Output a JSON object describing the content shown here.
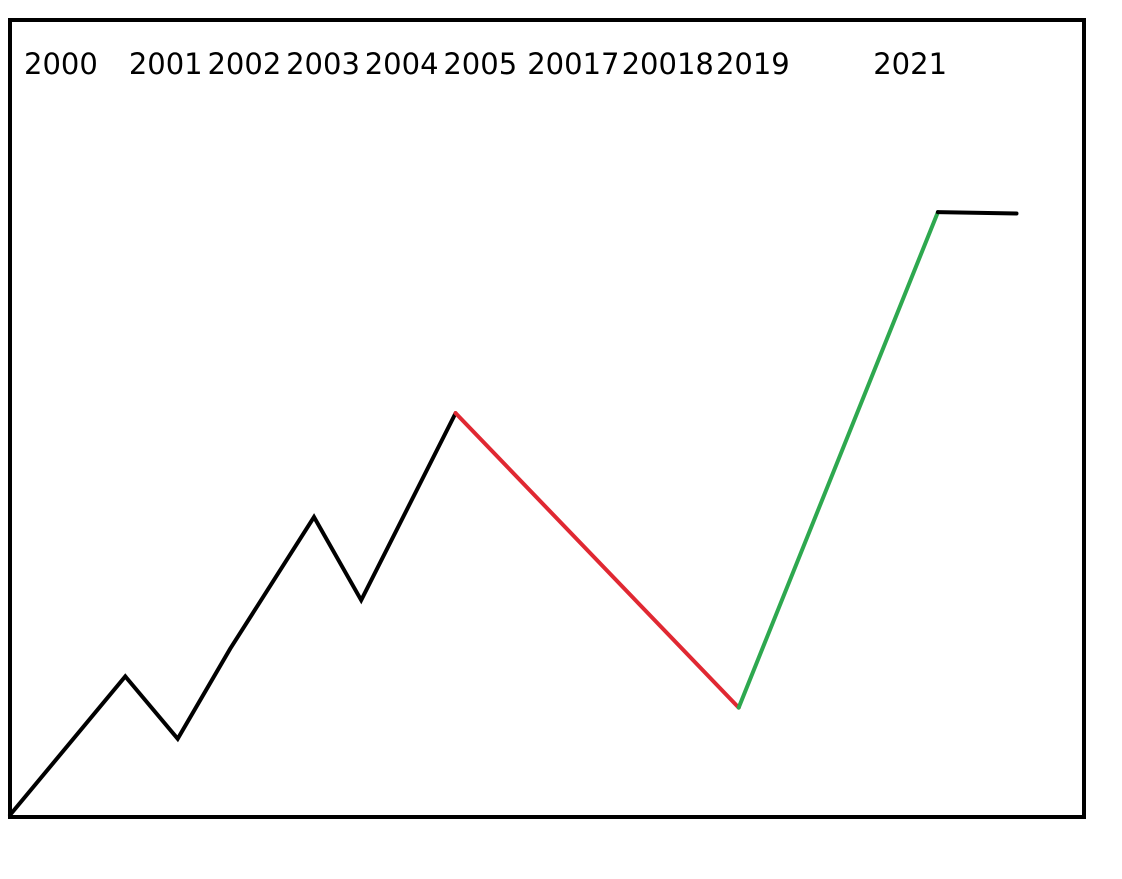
{
  "chart_data": {
    "type": "line",
    "title": "",
    "xlabel": "",
    "ylabel": "",
    "tick_labels": [
      {
        "text": "2000",
        "x": 2000
      },
      {
        "text": "2001",
        "x": 2002
      },
      {
        "text": "2002",
        "x": 2003.5
      },
      {
        "text": "2003",
        "x": 2005
      },
      {
        "text": "2004",
        "x": 2006.5
      },
      {
        "text": "2005",
        "x": 2008
      },
      {
        "text": "20017",
        "x": 2009.6
      },
      {
        "text": "20018",
        "x": 2011.4
      },
      {
        "text": "2019",
        "x": 2013.2
      },
      {
        "text": "2021",
        "x": 2016.2
      }
    ],
    "xlim": [
      2000,
      2019
    ],
    "ylim": [
      0,
      10
    ],
    "segments": [
      {
        "color": "#000000",
        "points": [
          [
            2000,
            0
          ],
          [
            2002.2,
            2.0
          ],
          [
            2003.2,
            1.1
          ],
          [
            2004.2,
            2.4
          ],
          [
            2005.8,
            4.3
          ],
          [
            2006.7,
            3.1
          ],
          [
            2008.5,
            5.8
          ]
        ]
      },
      {
        "color": "#e02832",
        "points": [
          [
            2008.5,
            5.8
          ],
          [
            2013.9,
            1.55
          ]
        ]
      },
      {
        "color": "#2ea84f",
        "points": [
          [
            2013.9,
            1.55
          ],
          [
            2017.7,
            8.7
          ]
        ]
      },
      {
        "color": "#000000",
        "points": [
          [
            2017.7,
            8.7
          ],
          [
            2019.2,
            8.68
          ]
        ]
      }
    ],
    "grid": false,
    "legend": "none"
  }
}
